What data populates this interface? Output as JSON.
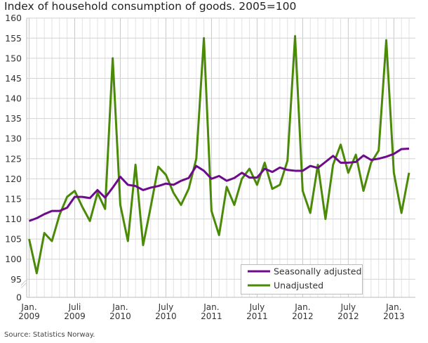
{
  "chart_data": {
    "type": "line",
    "title": "Index of household consumption of goods. 2005=100",
    "source": "Source: Statistics Norway.",
    "ylim": [
      95,
      160
    ],
    "y_ticks": [
      0,
      95,
      100,
      105,
      110,
      115,
      120,
      125,
      130,
      135,
      140,
      145,
      150,
      155,
      160
    ],
    "y_axis_break": true,
    "grid": true,
    "legend_position": "bottom-right",
    "x_start": "2009-01",
    "x_ticks": [
      {
        "month": 0,
        "label": [
          "Jan.",
          "2009"
        ]
      },
      {
        "month": 6,
        "label": [
          "Juli",
          "2009"
        ]
      },
      {
        "month": 12,
        "label": [
          "Jan.",
          "2010"
        ]
      },
      {
        "month": 18,
        "label": [
          "July",
          "2010"
        ]
      },
      {
        "month": 24,
        "label": [
          "Jan.",
          "2011"
        ]
      },
      {
        "month": 30,
        "label": [
          "July",
          "2011"
        ]
      },
      {
        "month": 36,
        "label": [
          "Jan.",
          "2012"
        ]
      },
      {
        "month": 42,
        "label": [
          "July",
          "2012"
        ]
      },
      {
        "month": 48,
        "label": [
          "Jan.",
          "2013"
        ]
      }
    ],
    "series": [
      {
        "name": "Seasonally adjusted",
        "color": "#6e0a8c",
        "values": [
          109.5,
          110.2,
          111.2,
          112,
          112,
          112.8,
          115.5,
          115.5,
          115.2,
          117.2,
          115.3,
          117.8,
          120.5,
          118.5,
          118.2,
          117.2,
          117.8,
          118.2,
          118.8,
          118.5,
          119.5,
          120.2,
          123.2,
          122,
          120,
          120.7,
          119.5,
          120.2,
          121.5,
          120.3,
          120.3,
          122.5,
          121.7,
          122.8,
          122.2,
          122,
          122,
          123.2,
          122.7,
          124.2,
          125.7,
          124,
          124,
          124.2,
          125.8,
          124.7,
          125,
          125.5,
          126.2,
          127.4,
          127.5
        ]
      },
      {
        "name": "Unadjusted",
        "color": "#4a8a07",
        "values": [
          105,
          96.5,
          106.5,
          104.5,
          111,
          115.5,
          117,
          113,
          109.5,
          116.5,
          112.5,
          150,
          113.5,
          104.5,
          123.5,
          103.5,
          113,
          123,
          121,
          116.5,
          113.5,
          117.5,
          125,
          155,
          112,
          106,
          118,
          113.5,
          120,
          122.5,
          118.5,
          124,
          117.5,
          118.5,
          124.5,
          155.5,
          117,
          111.5,
          123.5,
          110,
          123.5,
          128.5,
          121.5,
          126,
          117,
          124,
          127,
          154.5,
          121.5,
          111.5,
          121.5
        ]
      }
    ]
  }
}
